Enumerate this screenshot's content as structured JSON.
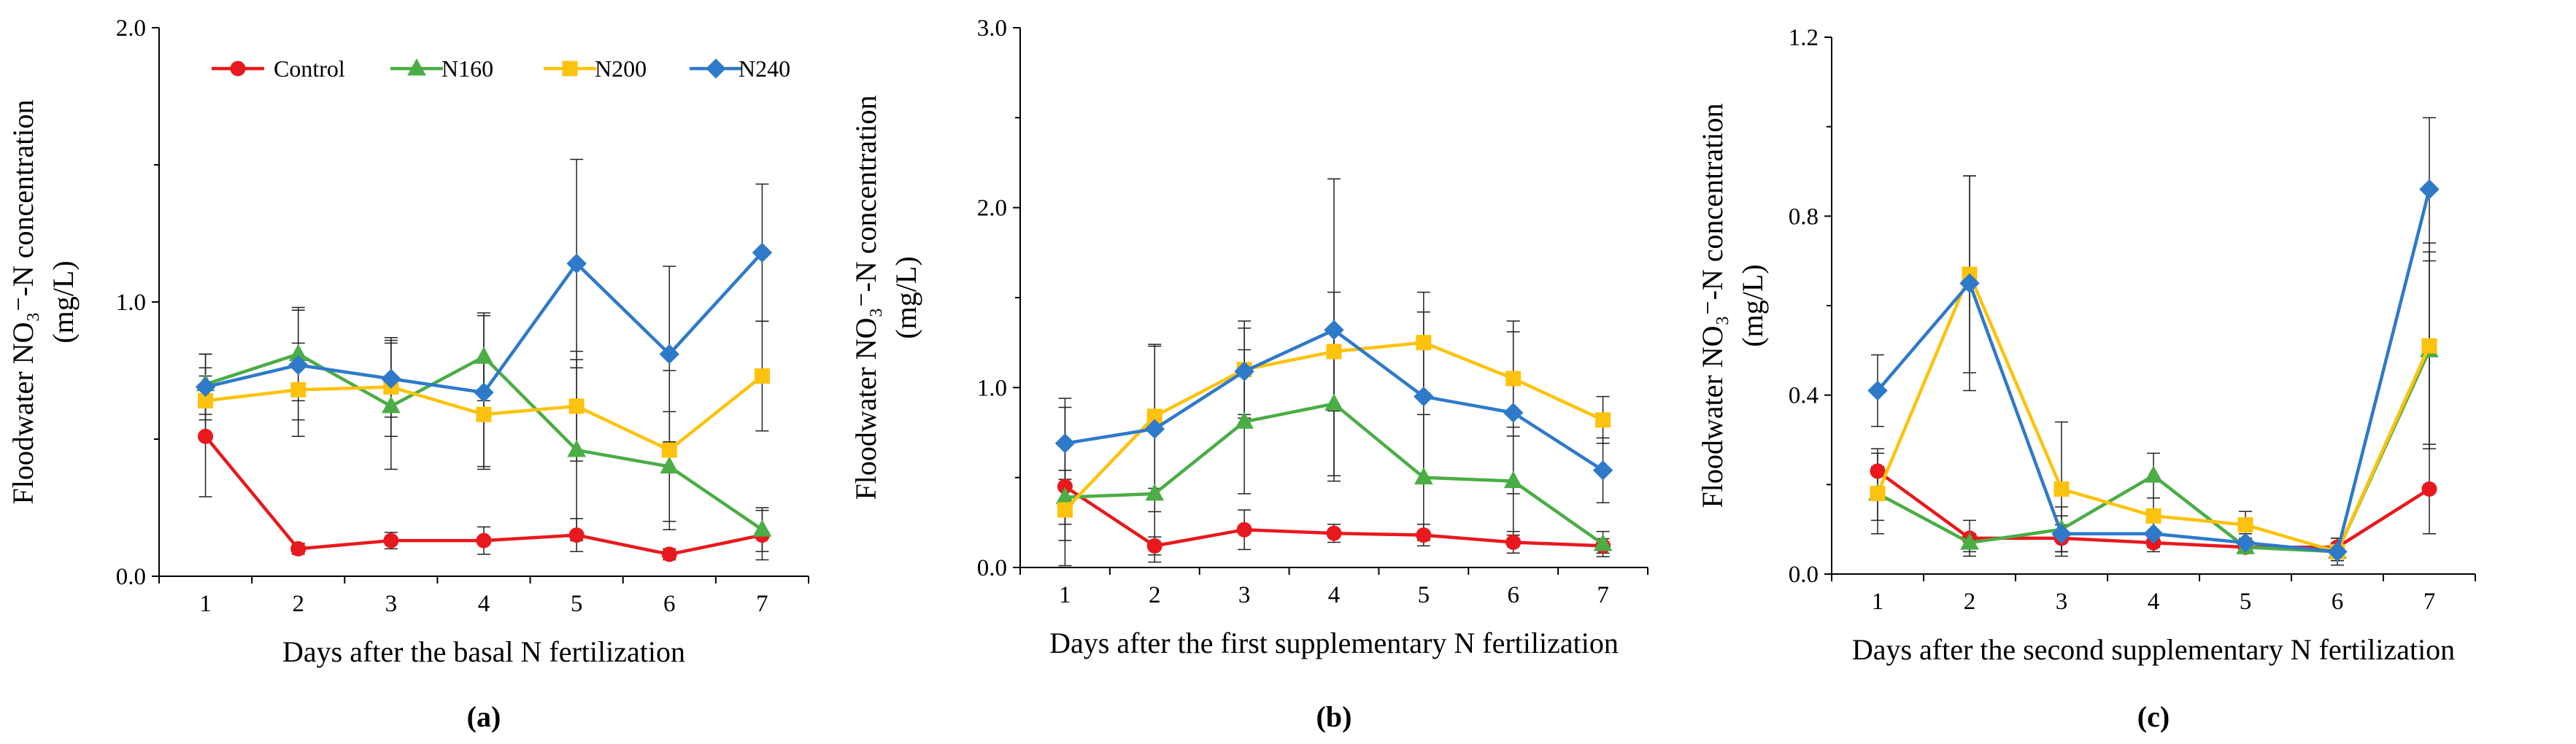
{
  "legend": {
    "series": [
      {
        "name": "Control",
        "color": "#e8191e",
        "marker": "circle"
      },
      {
        "name": "N160",
        "color": "#4aad45",
        "marker": "triangle"
      },
      {
        "name": "N200",
        "color": "#fdc20d",
        "marker": "square"
      },
      {
        "name": "N240",
        "color": "#2e7ac9",
        "marker": "diamond"
      }
    ]
  },
  "chart_data": [
    {
      "type": "line",
      "panel_label": "(a)",
      "xlabel": "Days after the basal N fertilization",
      "ylabel_line1": "Floodwater NO₃⁻-N  concentration",
      "ylabel_line2": "(mg/L)",
      "x": [
        1,
        2,
        3,
        4,
        5,
        6,
        7
      ],
      "ylim": [
        0,
        2.0
      ],
      "yticks": [
        0,
        1.0,
        2.0
      ],
      "ytick_labels": [
        "0.0",
        "1.0",
        "2.0"
      ],
      "show_legend": true,
      "series": [
        {
          "name": "Control",
          "values": [
            0.51,
            0.1,
            0.13,
            0.13,
            0.15,
            0.08,
            0.15
          ],
          "errors": [
            0.22,
            0.02,
            0.03,
            0.05,
            0.06,
            0.02,
            0.09
          ]
        },
        {
          "name": "N160",
          "values": [
            0.7,
            0.81,
            0.62,
            0.8,
            0.46,
            0.4,
            0.17
          ],
          "errors": [
            0.11,
            0.17,
            0.23,
            0.16,
            0.33,
            0.2,
            0.08
          ]
        },
        {
          "name": "N200",
          "values": [
            0.64,
            0.68,
            0.69,
            0.59,
            0.62,
            0.46,
            0.73
          ],
          "errors": [
            0.12,
            0.17,
            0.18,
            0.19,
            0.2,
            0.29,
            0.2
          ]
        },
        {
          "name": "N240",
          "values": [
            0.69,
            0.77,
            0.72,
            0.67,
            1.14,
            0.81,
            1.18
          ],
          "errors": [
            0.12,
            0.2,
            0.14,
            0.28,
            0.38,
            0.32,
            0.25
          ]
        }
      ]
    },
    {
      "type": "line",
      "panel_label": "(b)",
      "xlabel": "Days after the first supplementary N fertilization",
      "ylabel_line1": "Floodwater NO₃⁻-N  concentration",
      "ylabel_line2": "(mg/L)",
      "x": [
        1,
        2,
        3,
        4,
        5,
        6,
        7
      ],
      "ylim": [
        0,
        3.0
      ],
      "yticks": [
        0,
        1.0,
        2.0,
        3.0
      ],
      "ytick_labels": [
        "0.0",
        "1.0",
        "2.0",
        "3.0"
      ],
      "show_legend": false,
      "series": [
        {
          "name": "Control",
          "values": [
            0.45,
            0.12,
            0.21,
            0.19,
            0.18,
            0.14,
            0.12
          ],
          "errors": [
            0.44,
            0.05,
            0.11,
            0.05,
            0.06,
            0.06,
            0.04
          ]
        },
        {
          "name": "N160",
          "values": [
            0.39,
            0.41,
            0.81,
            0.91,
            0.5,
            0.48,
            0.13
          ],
          "errors": [
            0.15,
            0.38,
            0.4,
            0.4,
            0.35,
            0.3,
            0.07
          ]
        },
        {
          "name": "N200",
          "values": [
            0.32,
            0.84,
            1.1,
            1.2,
            1.25,
            1.05,
            0.82
          ],
          "errors": [
            0.17,
            0.4,
            0.27,
            0.33,
            0.28,
            0.32,
            0.13
          ]
        },
        {
          "name": "N240",
          "values": [
            0.69,
            0.77,
            1.09,
            1.32,
            0.95,
            0.86,
            0.54
          ],
          "errors": [
            0.25,
            0.46,
            0.24,
            0.84,
            0.47,
            0.45,
            0.18
          ]
        }
      ]
    },
    {
      "type": "line",
      "panel_label": "(c)",
      "xlabel": "Days after the second supplementary N fertilization",
      "ylabel_line1": "Floodwater NO₃⁻-N  concentration",
      "ylabel_line2": "(mg/L)",
      "x": [
        1,
        2,
        3,
        4,
        5,
        6,
        7
      ],
      "ylim": [
        0,
        1.2
      ],
      "yticks": [
        0,
        0.4,
        0.8,
        1.2
      ],
      "ytick_labels": [
        "0.0",
        "0.4",
        "0.8",
        "1.2"
      ],
      "show_legend": false,
      "series": [
        {
          "name": "Control",
          "values": [
            0.23,
            0.08,
            0.08,
            0.07,
            0.06,
            0.06,
            0.19
          ],
          "errors": [
            0.05,
            0.04,
            0.03,
            0.02,
            0.01,
            0.02,
            0.1
          ]
        },
        {
          "name": "N160",
          "values": [
            0.18,
            0.07,
            0.1,
            0.22,
            0.06,
            0.05,
            0.5
          ],
          "errors": [
            0.06,
            0.02,
            0.05,
            0.05,
            0.01,
            0.03,
            0.22
          ]
        },
        {
          "name": "N200",
          "values": [
            0.18,
            0.67,
            0.19,
            0.13,
            0.11,
            0.05,
            0.51
          ],
          "errors": [
            0.09,
            0.22,
            0.15,
            0.04,
            0.03,
            0.02,
            0.23
          ]
        },
        {
          "name": "N240",
          "values": [
            0.41,
            0.65,
            0.09,
            0.09,
            0.07,
            0.05,
            0.86
          ],
          "errors": [
            0.08,
            0.24,
            0.04,
            0.03,
            0.02,
            0.02,
            0.16
          ]
        }
      ]
    }
  ]
}
